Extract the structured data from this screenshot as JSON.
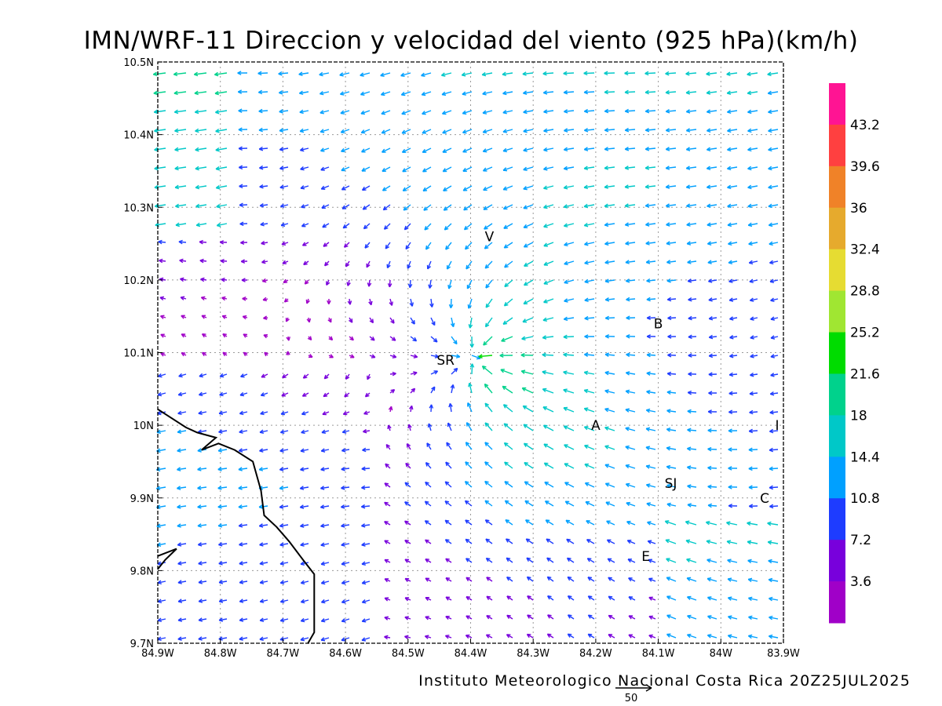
{
  "title": "IMN/WRF-11 Direccion y velocidad del viento (925 hPa)(km/h)",
  "footer": "Instituto Meteorologico Nacional Costa Rica 20Z25JUL2025",
  "chart_data": {
    "type": "vector",
    "lon_ticks": [
      "84.9W",
      "84.8W",
      "84.7W",
      "84.6W",
      "84.5W",
      "84.4W",
      "84.3W",
      "84.2W",
      "84.1W",
      "84W",
      "83.9W"
    ],
    "lat_ticks": [
      "10.5N",
      "10.4N",
      "10.3N",
      "10.2N",
      "10.1N",
      "10N",
      "9.9N",
      "9.8N",
      "9.7N"
    ],
    "lon_range": [
      -84.9,
      -83.9
    ],
    "lat_range": [
      9.7,
      10.5
    ],
    "grid": true,
    "colorbar": {
      "labels": [
        "43.2",
        "39.6",
        "36",
        "32.4",
        "28.8",
        "25.2",
        "21.6",
        "18",
        "14.4",
        "10.8",
        "7.2",
        "3.6"
      ],
      "colors": [
        "#ff1493",
        "#ff4040",
        "#f08228",
        "#e6aa2d",
        "#e6dc32",
        "#a0e632",
        "#00dc00",
        "#00d28c",
        "#00c8c8",
        "#00a0ff",
        "#1e3cff",
        "#7800dc",
        "#a000c8"
      ]
    },
    "reference_vector": {
      "label": "50"
    },
    "cities": [
      {
        "label": "V",
        "lon": -84.37,
        "lat": 10.26
      },
      {
        "label": "SR",
        "lon": -84.44,
        "lat": 10.09
      },
      {
        "label": "B",
        "lon": -84.1,
        "lat": 10.14
      },
      {
        "label": "A",
        "lon": -84.2,
        "lat": 10.0
      },
      {
        "label": "I",
        "lon": -83.91,
        "lat": 10.0
      },
      {
        "label": "SJ",
        "lon": -84.08,
        "lat": 9.92
      },
      {
        "label": "C",
        "lon": -83.93,
        "lat": 9.9
      },
      {
        "label": "E",
        "lon": -84.12,
        "lat": 9.82
      }
    ],
    "coastline": [
      [
        -84.9,
        10.022
      ],
      [
        -84.855,
        9.997
      ],
      [
        -84.837,
        9.99
      ],
      [
        -84.807,
        9.983
      ],
      [
        -84.83,
        9.966
      ],
      [
        -84.803,
        9.975
      ],
      [
        -84.777,
        9.966
      ],
      [
        -84.748,
        9.95
      ],
      [
        -84.735,
        9.91
      ],
      [
        -84.73,
        9.876
      ],
      [
        -84.71,
        9.86
      ],
      [
        -84.69,
        9.84
      ],
      [
        -84.668,
        9.815
      ],
      [
        -84.65,
        9.795
      ],
      [
        -84.65,
        9.75
      ],
      [
        -84.65,
        9.715
      ],
      [
        -84.66,
        9.7
      ]
    ],
    "coastline_2": [
      [
        -84.9,
        9.802
      ],
      [
        -84.888,
        9.815
      ],
      [
        -84.87,
        9.83
      ],
      [
        -84.9,
        9.82
      ]
    ],
    "wind_field_note": "vectors sampled on a regular grid; speed in km/h encoded by colour"
  }
}
